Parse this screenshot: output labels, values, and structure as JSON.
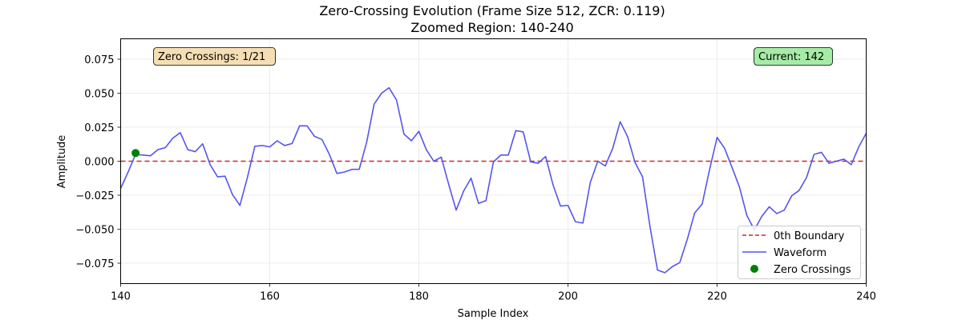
{
  "chart_data": {
    "type": "line",
    "title": "Zero-Crossing Evolution (Frame Size 512, ZCR: 0.119)",
    "subtitle": "Zoomed Region: 140-240",
    "xlabel": "Sample Index",
    "ylabel": "Amplitude",
    "xlim": [
      140,
      240
    ],
    "ylim": [
      -0.09,
      0.09
    ],
    "xticks": [
      "140",
      "160",
      "180",
      "200",
      "220",
      "240"
    ],
    "yticks": [
      "−0.075",
      "−0.050",
      "−0.025",
      "0.000",
      "0.025",
      "0.050",
      "0.075"
    ],
    "grid": true,
    "legend_position": "bottom-right",
    "boundary": {
      "name": "0th Boundary",
      "y": 0,
      "color": "#d62728"
    },
    "waveform": {
      "name": "Waveform",
      "color": "#5555ee",
      "x": [
        140,
        141,
        142,
        143,
        144,
        145,
        146,
        147,
        148,
        149,
        150,
        151,
        152,
        153,
        154,
        155,
        156,
        157,
        158,
        159,
        160,
        161,
        162,
        163,
        164,
        165,
        166,
        167,
        168,
        169,
        170,
        171,
        172,
        173,
        174,
        175,
        176,
        177,
        178,
        179,
        180,
        181,
        182,
        183,
        184,
        185,
        186,
        187,
        188,
        189,
        190,
        191,
        192,
        193,
        194,
        195,
        196,
        197,
        198,
        199,
        200,
        201,
        202,
        203,
        204,
        205,
        206,
        207,
        208,
        209,
        210,
        211,
        212,
        213,
        214,
        215,
        216,
        217,
        218,
        219,
        220,
        221,
        222,
        223,
        224,
        225,
        226,
        227,
        228,
        229,
        230,
        231,
        232,
        233,
        234,
        235,
        236,
        237,
        238,
        239,
        240
      ],
      "y": [
        -0.02,
        -0.008,
        0.005,
        0.0045,
        0.004,
        0.0085,
        0.01,
        0.017,
        0.021,
        0.0085,
        0.007,
        0.0128,
        -0.0025,
        -0.0115,
        -0.011,
        -0.0245,
        -0.0325,
        -0.012,
        0.011,
        0.0115,
        0.0105,
        0.015,
        0.0115,
        0.013,
        0.026,
        0.026,
        0.0183,
        0.016,
        0.005,
        -0.009,
        -0.008,
        -0.006,
        -0.006,
        0.014,
        0.042,
        0.05,
        0.054,
        0.045,
        0.02,
        0.015,
        0.022,
        0.0085,
        0.0,
        0.003,
        -0.017,
        -0.036,
        -0.022,
        -0.0125,
        -0.031,
        -0.029,
        -0.0005,
        0.0045,
        0.0045,
        0.0225,
        0.0215,
        -0.0005,
        -0.0015,
        0.0035,
        -0.0175,
        -0.033,
        -0.0325,
        -0.0445,
        -0.0455,
        -0.0155,
        0.0,
        -0.0035,
        0.0095,
        0.029,
        0.018,
        -0.001,
        -0.0115,
        -0.048,
        -0.08,
        -0.082,
        -0.0775,
        -0.0745,
        -0.0575,
        -0.038,
        -0.0315,
        -0.006,
        0.0175,
        0.0095,
        -0.0045,
        -0.019,
        -0.04,
        -0.0505,
        -0.0405,
        -0.0335,
        -0.0385,
        -0.036,
        -0.0255,
        -0.0215,
        -0.012,
        0.005,
        0.0065,
        -0.0015,
        0.0,
        0.0015,
        -0.0025,
        0.0105,
        0.0205
      ]
    },
    "zero_crossings": {
      "name": "Zero Crossings",
      "color": "#008000",
      "points": [
        {
          "x": 142,
          "y": 0.006
        }
      ]
    },
    "annotation_left": {
      "text": "Zero Crossings: 1/21",
      "bg": "#f5deb3"
    },
    "annotation_right": {
      "text": "Current: 142",
      "bg": "#a6eba6"
    }
  }
}
